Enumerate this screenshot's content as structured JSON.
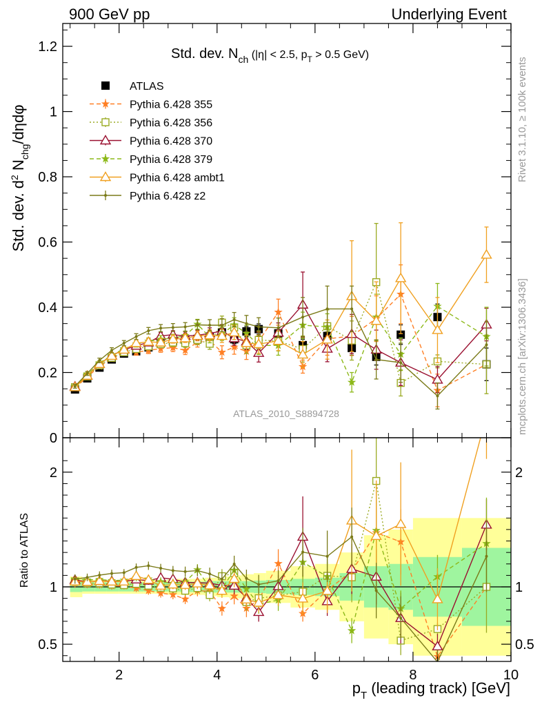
{
  "header": {
    "left": "900 GeV pp",
    "right": "Underlying Event"
  },
  "side_text": {
    "rivet": "Rivet 3.1.10, ≥ 100k events",
    "mcplots": "mcplots.cern.ch [arXiv:1306.3436]"
  },
  "watermark": "ATLAS_2010_S8894728",
  "chart_data": [
    {
      "type": "scatter",
      "title": "Std. dev. N_ch (|η| < 2.5, p_T > 0.5 GeV)",
      "ylabel": "Std. dev. d² N_chg/dηdφ",
      "xlim": [
        0.85,
        10.0
      ],
      "ylim": [
        0.0,
        1.27
      ],
      "yticks": [
        0,
        0.2,
        0.4,
        0.6,
        0.8,
        1,
        1.2
      ],
      "ytick_labels": [
        "0",
        "0.2",
        "0.4",
        "0.6",
        "0.8",
        "1",
        "1.2"
      ],
      "legend_position": "top-left",
      "x": [
        1.1,
        1.35,
        1.6,
        1.85,
        2.1,
        2.35,
        2.6,
        2.85,
        3.1,
        3.35,
        3.6,
        3.85,
        4.1,
        4.35,
        4.6,
        4.85,
        5.25,
        5.75,
        6.25,
        6.75,
        7.25,
        7.75,
        8.5,
        9.5
      ],
      "data": {
        "values": [
          0.148,
          0.182,
          0.215,
          0.24,
          0.258,
          0.265,
          0.277,
          0.289,
          0.296,
          0.3,
          0.303,
          0.31,
          0.323,
          0.302,
          0.326,
          0.333,
          0.32,
          0.284,
          0.312,
          0.275,
          0.248,
          0.316,
          0.37,
          0.225
        ],
        "errors": [
          0.008,
          0.008,
          0.009,
          0.009,
          0.01,
          0.01,
          0.011,
          0.011,
          0.012,
          0.012,
          0.013,
          0.013,
          0.014,
          0.014,
          0.015,
          0.016,
          0.017,
          0.018,
          0.02,
          0.022,
          0.025,
          0.03,
          0.04,
          0.05
        ]
      },
      "series": [
        {
          "name": "ATLAS",
          "marker": "square",
          "color": "#000000",
          "style": "none"
        },
        {
          "name": "Pythia 6.428 355",
          "marker": "star",
          "color": "#ff7f24",
          "style": "dashed",
          "values": [
            0.153,
            0.186,
            0.219,
            0.242,
            0.26,
            0.262,
            0.268,
            0.273,
            0.276,
            0.268,
            0.293,
            0.298,
            0.262,
            0.278,
            0.265,
            0.296,
            0.385,
            0.218,
            0.303,
            0.312,
            0.365,
            0.44,
            0.145,
            0.225
          ],
          "errors": [
            0.006,
            0.006,
            0.007,
            0.008,
            0.008,
            0.009,
            0.01,
            0.011,
            0.012,
            0.013,
            0.015,
            0.017,
            0.02,
            0.022,
            0.025,
            0.028,
            0.04,
            0.02,
            0.05,
            0.06,
            0.07,
            0.09,
            0.05,
            0.01
          ]
        },
        {
          "name": "Pythia 6.428 356",
          "marker": "open-square",
          "color": "#9aaa22",
          "style": "dotted",
          "values": [
            0.155,
            0.188,
            0.222,
            0.245,
            0.262,
            0.272,
            0.28,
            0.287,
            0.292,
            0.29,
            0.3,
            0.288,
            0.353,
            0.338,
            0.283,
            0.3,
            0.296,
            0.272,
            0.342,
            0.298,
            0.477,
            0.168,
            0.234,
            0.225
          ],
          "errors": [
            0.006,
            0.006,
            0.007,
            0.008,
            0.008,
            0.009,
            0.01,
            0.011,
            0.012,
            0.013,
            0.015,
            0.017,
            0.02,
            0.022,
            0.025,
            0.028,
            0.03,
            0.04,
            0.05,
            0.06,
            0.18,
            0.04,
            0.02,
            0.09
          ]
        },
        {
          "name": "Pythia 6.428 370",
          "marker": "open-triangle",
          "color": "#9a1030",
          "style": "solid",
          "values": [
            0.157,
            0.19,
            0.226,
            0.252,
            0.27,
            0.282,
            0.292,
            0.312,
            0.316,
            0.312,
            0.314,
            0.32,
            0.327,
            0.305,
            0.295,
            0.26,
            0.322,
            0.408,
            0.273,
            0.318,
            0.27,
            0.23,
            0.178,
            0.347
          ],
          "errors": [
            0.006,
            0.006,
            0.007,
            0.008,
            0.008,
            0.009,
            0.01,
            0.011,
            0.012,
            0.013,
            0.015,
            0.017,
            0.02,
            0.022,
            0.025,
            0.028,
            0.03,
            0.1,
            0.04,
            0.06,
            0.06,
            0.07,
            0.04,
            0.05
          ]
        },
        {
          "name": "Pythia 6.428 379",
          "marker": "star",
          "color": "#8cb818",
          "style": "dashed",
          "values": [
            0.158,
            0.193,
            0.229,
            0.253,
            0.273,
            0.287,
            0.296,
            0.302,
            0.305,
            0.313,
            0.348,
            0.308,
            0.318,
            0.346,
            0.32,
            0.283,
            0.283,
            0.345,
            0.34,
            0.17,
            0.37,
            0.256,
            0.403,
            0.31
          ],
          "errors": [
            0.006,
            0.006,
            0.007,
            0.008,
            0.008,
            0.009,
            0.01,
            0.011,
            0.012,
            0.013,
            0.015,
            0.017,
            0.02,
            0.022,
            0.025,
            0.028,
            0.03,
            0.04,
            0.04,
            0.03,
            0.07,
            0.05,
            0.07,
            0.09
          ]
        },
        {
          "name": "Pythia 6.428 ambt1",
          "marker": "open-triangle",
          "color": "#f0a020",
          "style": "solid",
          "values": [
            0.155,
            0.19,
            0.226,
            0.251,
            0.27,
            0.29,
            0.294,
            0.292,
            0.302,
            0.305,
            0.312,
            0.314,
            0.312,
            0.323,
            0.29,
            0.287,
            0.297,
            0.255,
            0.301,
            0.434,
            0.358,
            0.489,
            0.33,
            0.561
          ],
          "errors": [
            0.006,
            0.006,
            0.007,
            0.008,
            0.008,
            0.009,
            0.01,
            0.011,
            0.012,
            0.013,
            0.015,
            0.017,
            0.02,
            0.022,
            0.025,
            0.028,
            0.03,
            0.04,
            0.06,
            0.17,
            0.12,
            0.17,
            0.1,
            0.085
          ]
        },
        {
          "name": "Pythia 6.428 z2",
          "marker": "dot",
          "color": "#7a7a18",
          "style": "solid",
          "values": [
            0.158,
            0.197,
            0.237,
            0.268,
            0.29,
            0.31,
            0.328,
            0.336,
            0.338,
            0.34,
            0.346,
            0.345,
            0.345,
            0.362,
            0.35,
            0.34,
            0.337,
            0.37,
            0.395,
            0.395,
            0.24,
            0.23,
            0.128,
            0.285
          ],
          "errors": [
            0.006,
            0.006,
            0.007,
            0.008,
            0.008,
            0.009,
            0.01,
            0.011,
            0.012,
            0.013,
            0.015,
            0.017,
            0.02,
            0.022,
            0.025,
            0.028,
            0.03,
            0.06,
            0.07,
            0.07,
            0.06,
            0.06,
            0.04,
            0.07
          ]
        }
      ]
    },
    {
      "type": "scatter",
      "xlabel": "p_T (leading track) [GeV]",
      "ylabel": "Ratio to ATLAS",
      "xlim": [
        0.85,
        10.0
      ],
      "ylim": [
        0.35,
        2.3
      ],
      "xticks": [
        2,
        4,
        6,
        8,
        10
      ],
      "xtick_labels": [
        "2",
        "4",
        "6",
        "8",
        "10"
      ],
      "yticks": [
        0.5,
        1,
        2
      ],
      "ytick_labels": [
        "0.5",
        "1",
        "2"
      ],
      "reference_line": 1,
      "bands": {
        "edges": [
          1.0,
          1.25,
          1.5,
          1.75,
          2.0,
          2.25,
          2.5,
          2.75,
          3.0,
          3.25,
          3.5,
          3.75,
          4.0,
          4.25,
          4.5,
          4.75,
          5.0,
          5.5,
          6.0,
          6.5,
          7.0,
          7.5,
          8.0,
          9.0,
          10.0
        ],
        "stat_half_width": [
          0.045,
          0.04,
          0.04,
          0.04,
          0.04,
          0.04,
          0.04,
          0.04,
          0.04,
          0.045,
          0.045,
          0.05,
          0.05,
          0.05,
          0.05,
          0.055,
          0.06,
          0.07,
          0.08,
          0.12,
          0.18,
          0.2,
          0.26,
          0.34
        ],
        "total_half_width": [
          0.09,
          0.06,
          0.06,
          0.06,
          0.06,
          0.06,
          0.06,
          0.06,
          0.07,
          0.07,
          0.07,
          0.08,
          0.09,
          0.1,
          0.11,
          0.12,
          0.14,
          0.18,
          0.2,
          0.3,
          0.45,
          0.5,
          0.6,
          0.6
        ],
        "stat_color": "#9ff59f",
        "total_color": "#ffff99"
      }
    }
  ]
}
